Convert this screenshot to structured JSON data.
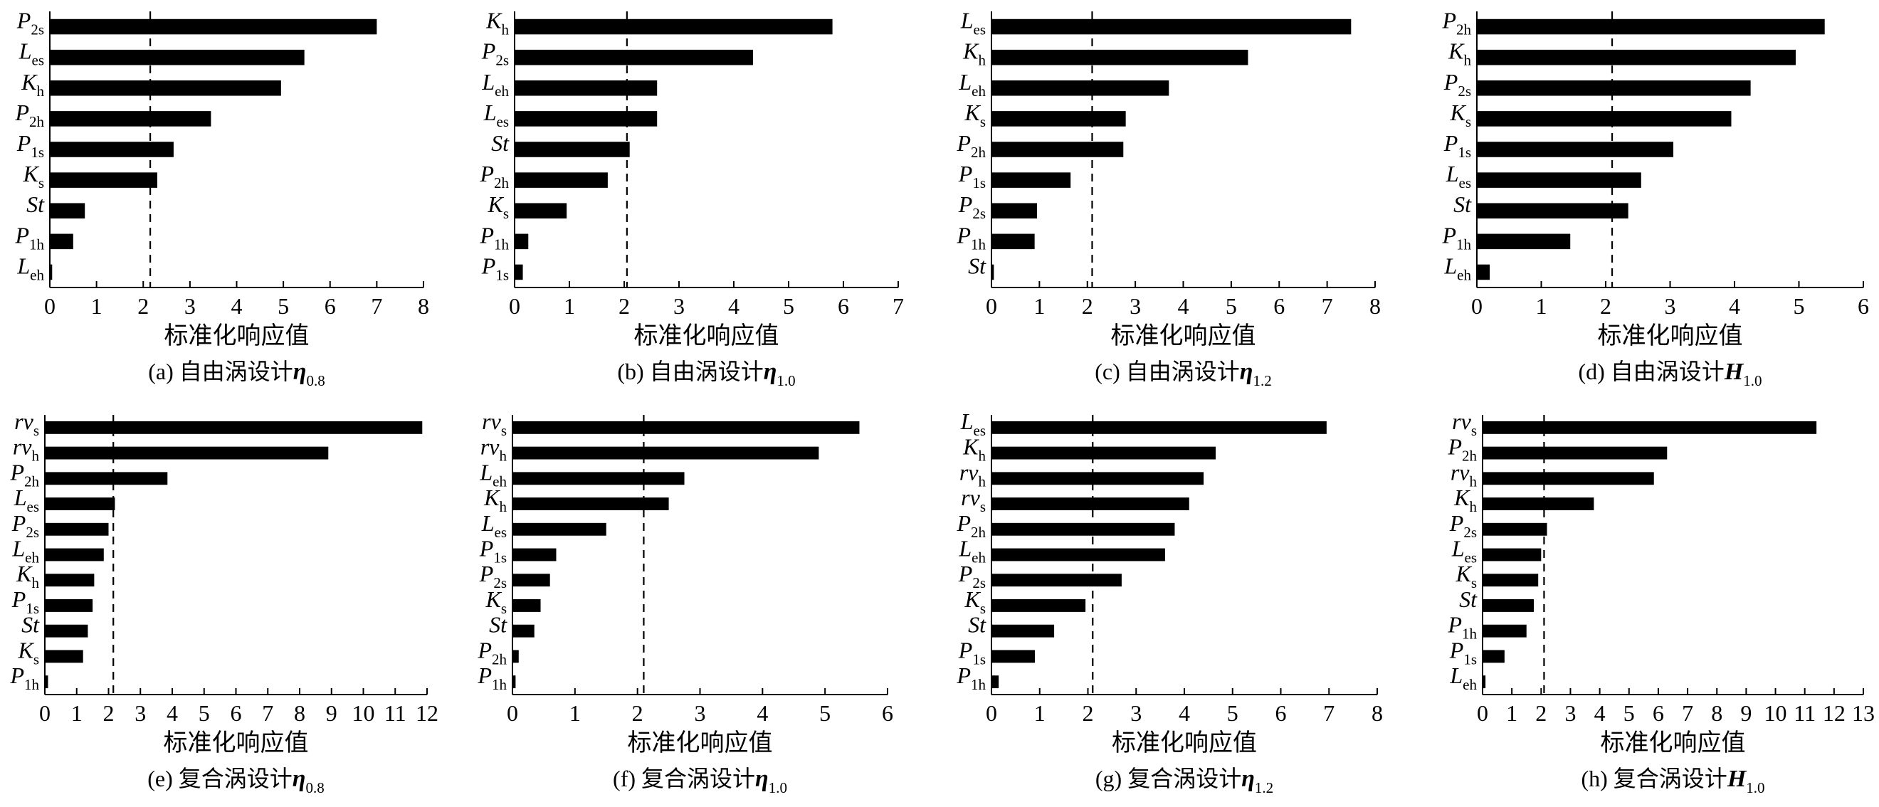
{
  "chart_data": [
    {
      "type": "bar",
      "orientation": "horizontal",
      "xlabel": "标准化响应值",
      "caption": {
        "prefix": "(a) 自由涡设计",
        "symbol": "η",
        "sub": "0.8"
      },
      "xlim": [
        0,
        8
      ],
      "xticks": [
        0,
        1,
        2,
        3,
        4,
        5,
        6,
        7,
        8
      ],
      "reference_line": 2.15,
      "categories": [
        {
          "base": "P",
          "sub": "2s"
        },
        {
          "base": "L",
          "sub": "es"
        },
        {
          "base": "K",
          "sub": "h"
        },
        {
          "base": "P",
          "sub": "2h"
        },
        {
          "base": "P",
          "sub": "1s"
        },
        {
          "base": "K",
          "sub": "s"
        },
        {
          "base": "St",
          "sub": ""
        },
        {
          "base": "P",
          "sub": "1h"
        },
        {
          "base": "L",
          "sub": "eh"
        }
      ],
      "values": [
        7.0,
        5.45,
        4.95,
        3.45,
        2.65,
        2.3,
        0.75,
        0.5,
        0.05
      ]
    },
    {
      "type": "bar",
      "orientation": "horizontal",
      "xlabel": "标准化响应值",
      "caption": {
        "prefix": "(b) 自由涡设计",
        "symbol": "η",
        "sub": "1.0"
      },
      "xlim": [
        0,
        7
      ],
      "xticks": [
        0,
        1,
        2,
        3,
        4,
        5,
        6,
        7
      ],
      "reference_line": 2.05,
      "categories": [
        {
          "base": "K",
          "sub": "h"
        },
        {
          "base": "P",
          "sub": "2s"
        },
        {
          "base": "L",
          "sub": "eh"
        },
        {
          "base": "L",
          "sub": "es"
        },
        {
          "base": "St",
          "sub": ""
        },
        {
          "base": "P",
          "sub": "2h"
        },
        {
          "base": "K",
          "sub": "s"
        },
        {
          "base": "P",
          "sub": "1h"
        },
        {
          "base": "P",
          "sub": "1s"
        }
      ],
      "values": [
        5.8,
        4.35,
        2.6,
        2.6,
        2.1,
        1.7,
        0.95,
        0.25,
        0.15
      ]
    },
    {
      "type": "bar",
      "orientation": "horizontal",
      "xlabel": "标准化响应值",
      "caption": {
        "prefix": "(c) 自由涡设计",
        "symbol": "η",
        "sub": "1.2"
      },
      "xlim": [
        0,
        8
      ],
      "xticks": [
        0,
        1,
        2,
        3,
        4,
        5,
        6,
        7,
        8
      ],
      "reference_line": 2.1,
      "categories": [
        {
          "base": "L",
          "sub": "es"
        },
        {
          "base": "K",
          "sub": "h"
        },
        {
          "base": "L",
          "sub": "eh"
        },
        {
          "base": "K",
          "sub": "s"
        },
        {
          "base": "P",
          "sub": "2h"
        },
        {
          "base": "P",
          "sub": "1s"
        },
        {
          "base": "P",
          "sub": "2s"
        },
        {
          "base": "P",
          "sub": "1h"
        },
        {
          "base": "St",
          "sub": ""
        }
      ],
      "values": [
        7.5,
        5.35,
        3.7,
        2.8,
        2.75,
        1.65,
        0.95,
        0.9,
        0.05
      ]
    },
    {
      "type": "bar",
      "orientation": "horizontal",
      "xlabel": "标准化响应值",
      "caption": {
        "prefix": "(d) 自由涡设计",
        "symbol": "H",
        "sub": "1.0"
      },
      "xlim": [
        0,
        6
      ],
      "xticks": [
        0,
        1,
        2,
        3,
        4,
        5,
        6
      ],
      "reference_line": 2.1,
      "categories": [
        {
          "base": "P",
          "sub": "2h"
        },
        {
          "base": "K",
          "sub": "h"
        },
        {
          "base": "P",
          "sub": "2s"
        },
        {
          "base": "K",
          "sub": "s"
        },
        {
          "base": "P",
          "sub": "1s"
        },
        {
          "base": "L",
          "sub": "es"
        },
        {
          "base": "St",
          "sub": ""
        },
        {
          "base": "P",
          "sub": "1h"
        },
        {
          "base": "L",
          "sub": "eh"
        }
      ],
      "values": [
        5.4,
        4.95,
        4.25,
        3.95,
        3.05,
        2.55,
        2.35,
        1.45,
        0.2
      ]
    },
    {
      "type": "bar",
      "orientation": "horizontal",
      "xlabel": "标准化响应值",
      "caption": {
        "prefix": "(e) 复合涡设计",
        "symbol": "η",
        "sub": "0.8"
      },
      "xlim": [
        0,
        12
      ],
      "xticks": [
        0,
        1,
        2,
        3,
        4,
        5,
        6,
        7,
        8,
        9,
        10,
        11,
        12
      ],
      "reference_line": 2.15,
      "categories": [
        {
          "base": "rv",
          "sub": "s"
        },
        {
          "base": "rv",
          "sub": "h"
        },
        {
          "base": "P",
          "sub": "2h"
        },
        {
          "base": "L",
          "sub": "es"
        },
        {
          "base": "P",
          "sub": "2s"
        },
        {
          "base": "L",
          "sub": "eh"
        },
        {
          "base": "K",
          "sub": "h"
        },
        {
          "base": "P",
          "sub": "1s"
        },
        {
          "base": "St",
          "sub": ""
        },
        {
          "base": "K",
          "sub": "s"
        },
        {
          "base": "P",
          "sub": "1h"
        }
      ],
      "values": [
        11.85,
        8.9,
        3.85,
        2.2,
        2.0,
        1.85,
        1.55,
        1.5,
        1.35,
        1.2,
        0.1
      ]
    },
    {
      "type": "bar",
      "orientation": "horizontal",
      "xlabel": "标准化响应值",
      "caption": {
        "prefix": "(f) 复合涡设计",
        "symbol": "η",
        "sub": "1.0"
      },
      "xlim": [
        0,
        6
      ],
      "xticks": [
        0,
        1,
        2,
        3,
        4,
        5,
        6
      ],
      "reference_line": 2.1,
      "categories": [
        {
          "base": "rv",
          "sub": "s"
        },
        {
          "base": "rv",
          "sub": "h"
        },
        {
          "base": "L",
          "sub": "eh"
        },
        {
          "base": "K",
          "sub": "h"
        },
        {
          "base": "L",
          "sub": "es"
        },
        {
          "base": "P",
          "sub": "1s"
        },
        {
          "base": "P",
          "sub": "2s"
        },
        {
          "base": "K",
          "sub": "s"
        },
        {
          "base": "St",
          "sub": ""
        },
        {
          "base": "P",
          "sub": "2h"
        },
        {
          "base": "P",
          "sub": "1h"
        }
      ],
      "values": [
        5.55,
        4.9,
        2.75,
        2.5,
        1.5,
        0.7,
        0.6,
        0.45,
        0.35,
        0.1,
        0.05
      ]
    },
    {
      "type": "bar",
      "orientation": "horizontal",
      "xlabel": "标准化响应值",
      "caption": {
        "prefix": "(g) 复合涡设计",
        "symbol": "η",
        "sub": "1.2"
      },
      "xlim": [
        0,
        8
      ],
      "xticks": [
        0,
        1,
        2,
        3,
        4,
        5,
        6,
        7,
        8
      ],
      "reference_line": 2.1,
      "categories": [
        {
          "base": "L",
          "sub": "es"
        },
        {
          "base": "K",
          "sub": "h"
        },
        {
          "base": "rv",
          "sub": "h"
        },
        {
          "base": "rv",
          "sub": "s"
        },
        {
          "base": "P",
          "sub": "2h"
        },
        {
          "base": "L",
          "sub": "eh"
        },
        {
          "base": "P",
          "sub": "2s"
        },
        {
          "base": "K",
          "sub": "s"
        },
        {
          "base": "St",
          "sub": ""
        },
        {
          "base": "P",
          "sub": "1s"
        },
        {
          "base": "P",
          "sub": "1h"
        }
      ],
      "values": [
        6.95,
        4.65,
        4.4,
        4.1,
        3.8,
        3.6,
        2.7,
        1.95,
        1.3,
        0.9,
        0.15
      ]
    },
    {
      "type": "bar",
      "orientation": "horizontal",
      "xlabel": "标准化响应值",
      "caption": {
        "prefix": "(h) 复合涡设计",
        "symbol": "H",
        "sub": "1.0"
      },
      "xlim": [
        0,
        13
      ],
      "xticks": [
        0,
        1,
        2,
        3,
        4,
        5,
        6,
        7,
        8,
        9,
        10,
        11,
        12,
        13
      ],
      "reference_line": 2.1,
      "categories": [
        {
          "base": "rv",
          "sub": "s"
        },
        {
          "base": "P",
          "sub": "2h"
        },
        {
          "base": "rv",
          "sub": "h"
        },
        {
          "base": "K",
          "sub": "h"
        },
        {
          "base": "P",
          "sub": "2s"
        },
        {
          "base": "L",
          "sub": "es"
        },
        {
          "base": "K",
          "sub": "s"
        },
        {
          "base": "St",
          "sub": ""
        },
        {
          "base": "P",
          "sub": "1h"
        },
        {
          "base": "P",
          "sub": "1s"
        },
        {
          "base": "L",
          "sub": "eh"
        }
      ],
      "values": [
        11.4,
        6.3,
        5.85,
        3.8,
        2.2,
        2.0,
        1.9,
        1.75,
        1.5,
        0.75,
        0.1
      ]
    }
  ]
}
